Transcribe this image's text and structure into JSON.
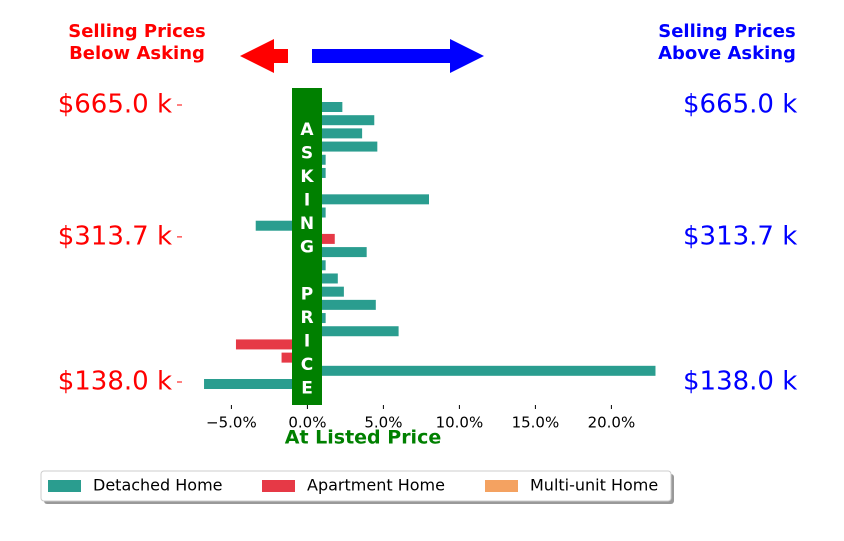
{
  "chart_data": {
    "type": "barh",
    "annotations": {
      "below": [
        "Selling Prices",
        "Below Asking"
      ],
      "above": [
        "Selling Prices",
        "Above Asking"
      ],
      "asking": "ASKING PRICE"
    },
    "xlabel": "At Listed Price",
    "categories": [
      "$665.0 k",
      null,
      null,
      null,
      null,
      null,
      null,
      null,
      null,
      null,
      "$313.7 k",
      null,
      null,
      null,
      null,
      null,
      null,
      null,
      null,
      null,
      null,
      "$138.0 k"
    ],
    "series": [
      {
        "name": "Detached Home",
        "color": "#2a9d8f",
        "values": [
          2.3,
          4.4,
          3.6,
          4.6,
          1.2,
          1.2,
          null,
          8.0,
          1.2,
          -3.4,
          null,
          3.9,
          1.2,
          2.0,
          2.4,
          4.5,
          1.2,
          6.0,
          null,
          null,
          22.9,
          -6.8
        ]
      },
      {
        "name": "Apartment Home",
        "color": "#e63946",
        "values": [
          null,
          null,
          null,
          null,
          null,
          null,
          null,
          null,
          null,
          null,
          1.8,
          null,
          null,
          null,
          null,
          null,
          null,
          null,
          -4.7,
          -1.7,
          null,
          null
        ]
      },
      {
        "name": "Multi-unit Home",
        "color": "#f4a261",
        "values": [
          null,
          null,
          null,
          null,
          null,
          null,
          null,
          null,
          null,
          null,
          null,
          null,
          null,
          null,
          null,
          null,
          null,
          null,
          null,
          null,
          null,
          null
        ]
      }
    ],
    "xlim": [
      -7,
      23
    ],
    "xticks": [
      {
        "value": -5,
        "label": "−5.0%"
      },
      {
        "value": 0,
        "label": "0.0%"
      },
      {
        "value": 5,
        "label": "5.0%"
      },
      {
        "value": 10,
        "label": "10.0%"
      },
      {
        "value": 15,
        "label": "15.0%"
      },
      {
        "value": 20,
        "label": "20.0%"
      }
    ],
    "legend": "bottom"
  }
}
